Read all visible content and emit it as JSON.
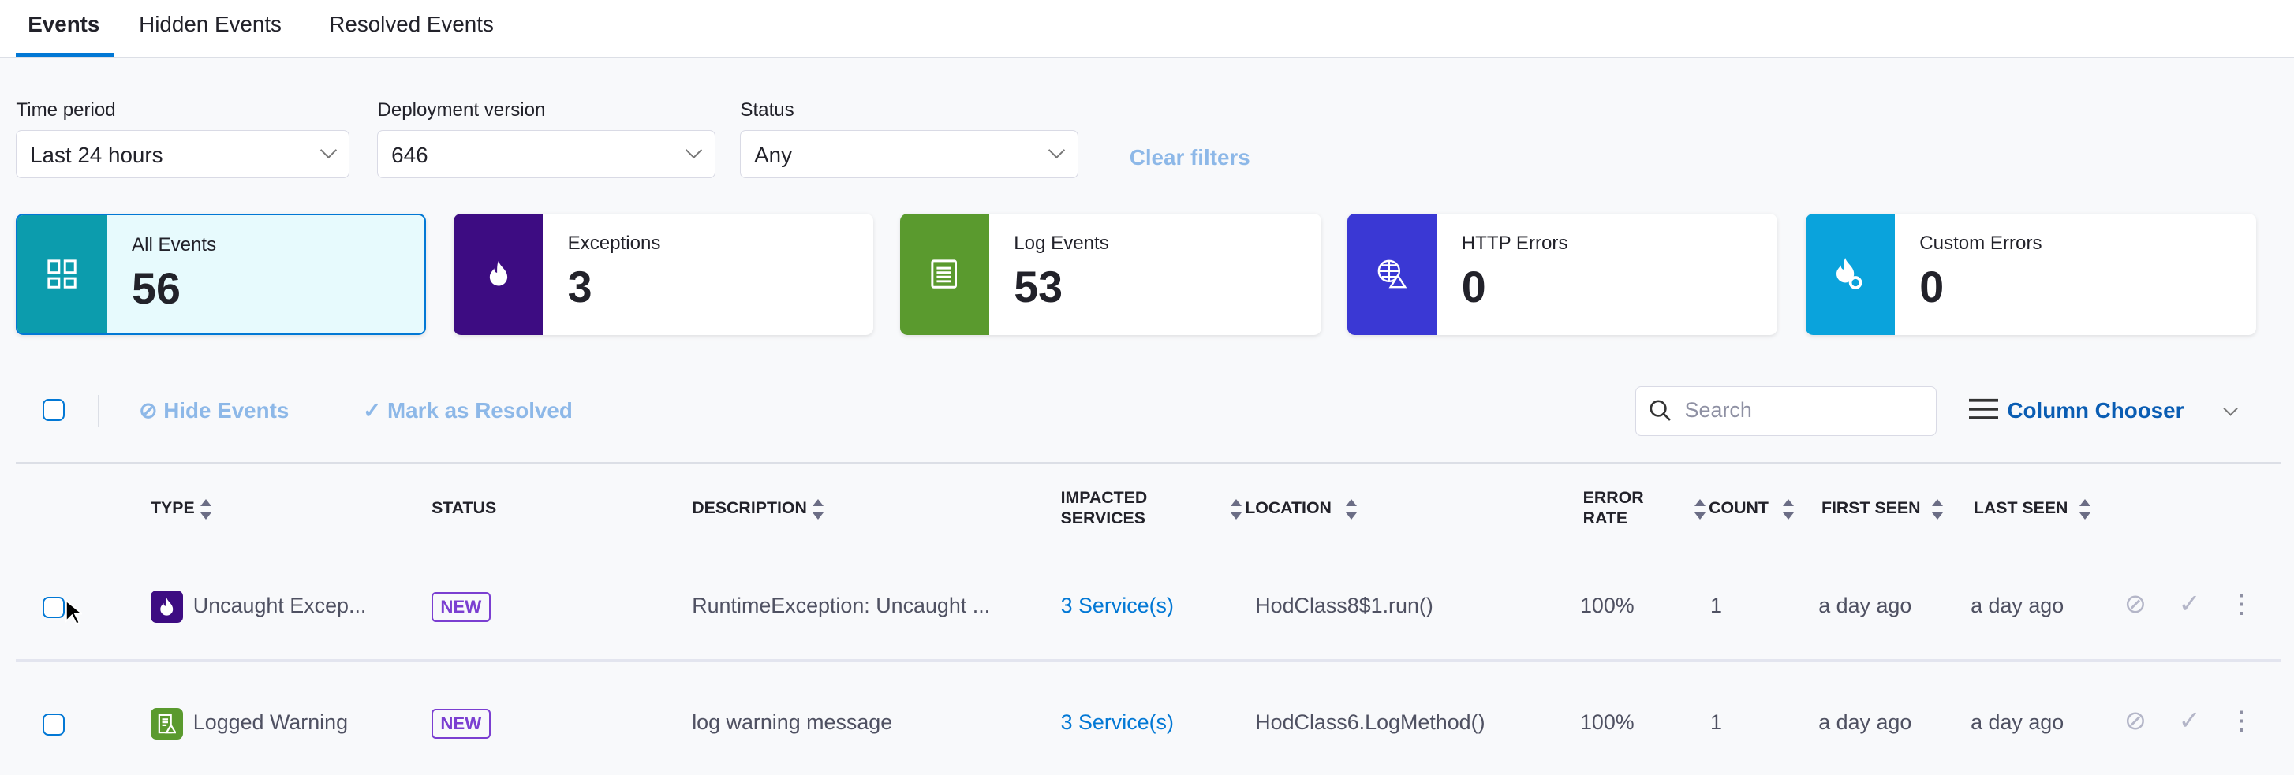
{
  "tabs": [
    {
      "label": "Events",
      "active": true
    },
    {
      "label": "Hidden Events"
    },
    {
      "label": "Resolved Events"
    }
  ],
  "filters": {
    "time_period": {
      "label": "Time period",
      "value": "Last 24 hours"
    },
    "deployment_version": {
      "label": "Deployment version",
      "value": "646"
    },
    "status": {
      "label": "Status",
      "value": "Any"
    },
    "clear_label": "Clear filters"
  },
  "cards": [
    {
      "label": "All Events",
      "count": "56",
      "color": "#0c9cad",
      "icon": "grid-icon",
      "selected": true
    },
    {
      "label": "Exceptions",
      "count": "3",
      "color": "#3d0c82",
      "icon": "flame-icon"
    },
    {
      "label": "Log Events",
      "count": "53",
      "color": "#5a9a2e",
      "icon": "document-icon"
    },
    {
      "label": "HTTP Errors",
      "count": "0",
      "color": "#3a38d4",
      "icon": "globe-warning-icon"
    },
    {
      "label": "Custom Errors",
      "count": "0",
      "color": "#0aa3dc",
      "icon": "flame-gear-icon"
    }
  ],
  "toolbar": {
    "hide_label": "Hide Events",
    "resolve_label": "Mark as Resolved",
    "search_placeholder": "Search",
    "column_chooser_label": "Column Chooser"
  },
  "table": {
    "columns": {
      "type": "TYPE",
      "status": "STATUS",
      "description": "DESCRIPTION",
      "impacted_1": "IMPACTED",
      "impacted_2": "SERVICES",
      "location": "LOCATION",
      "error_rate_1": "ERROR",
      "error_rate_2": "RATE",
      "count": "COUNT",
      "first_seen": "FIRST SEEN",
      "last_seen": "LAST SEEN"
    },
    "rows": [
      {
        "type": "Uncaught Excep...",
        "type_icon": "flame-icon",
        "type_color": "#3d0c82",
        "status": "NEW",
        "description": "RuntimeException: Uncaught ...",
        "services": "3 Service(s)",
        "location": "HodClass8$1.run()",
        "error_rate": "100%",
        "count": "1",
        "first_seen": "a day ago",
        "last_seen": "a day ago"
      },
      {
        "type": "Logged Warning",
        "type_icon": "log-warning-icon",
        "type_color": "#5a9a2e",
        "status": "NEW",
        "description": "log warning message",
        "services": "3 Service(s)",
        "location": "HodClass6.LogMethod()",
        "error_rate": "100%",
        "count": "1",
        "first_seen": "a day ago",
        "last_seen": "a day ago"
      }
    ]
  }
}
